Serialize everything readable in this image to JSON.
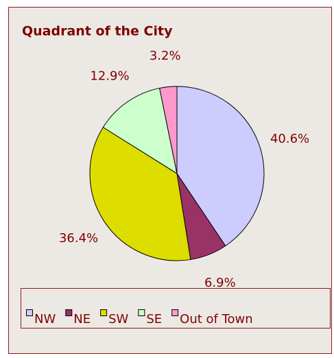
{
  "chart_data": {
    "type": "pie",
    "title": "Quadrant of the City",
    "categories": [
      "NW",
      "NE",
      "SW",
      "SE",
      "Out of Town"
    ],
    "values": [
      40.6,
      6.9,
      36.4,
      12.9,
      3.2
    ],
    "value_labels": [
      "40.6%",
      "6.9%",
      "36.4%",
      "12.9%",
      "3.2%"
    ],
    "colors": [
      "#ccccff",
      "#993366",
      "#dddd00",
      "#ccffcc",
      "#ff99cc"
    ],
    "legend": "bottom"
  }
}
